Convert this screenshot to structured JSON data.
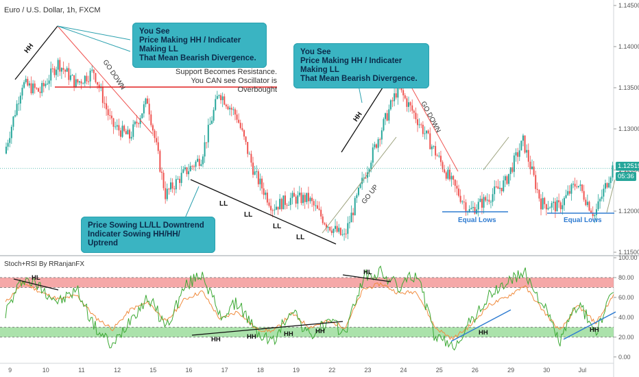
{
  "chart_title": "Euro / U.S. Dollar, 1h, FXCM",
  "indicator_title": "Stoch+RSI By RRanjanFX",
  "current_price": "1.12519",
  "countdown": "05:36",
  "callouts": {
    "top_left": "You See\nPrice Making HH / Indicater Making LL\nThat Mean Bearish Divergence.",
    "top_right": "You See\nPrice Making HH / Indicater Making LL\nThat Mean Bearish Divergence.",
    "bottom": "Price Sowing LL/LL Downtrend\nIndicater Sowing HH/HH/ Uptrend"
  },
  "support_note": "Support Becomes Resistance.\nYou CAN see Oscillator is Overbought",
  "colors": {
    "bull": "#26a69a",
    "bear": "#ef5350",
    "callout": "#3ab4c2",
    "overbought_zone": "#f28b8b",
    "oversold_zone": "#8fd88f",
    "stoch_line": "#f08a3c",
    "rsi_line": "#3aa832",
    "equal_lows": "#2e7bd1",
    "resistance": "#e01e1e"
  },
  "chart_data": [
    {
      "type": "line",
      "title": "Euro / U.S. Dollar, 1h, FXCM",
      "x_ticks": [
        "9",
        "10",
        "11",
        "12",
        "15",
        "16",
        "17",
        "18",
        "19",
        "22",
        "23",
        "24",
        "25",
        "26",
        "29",
        "30",
        "Jul"
      ],
      "y_ticks": [
        "1.11500",
        "1.12000",
        "1.12500",
        "1.13000",
        "1.13500",
        "1.14000",
        "1.14500"
      ],
      "ylim": [
        1.115,
        1.145
      ],
      "series": [
        {
          "x": [
            0,
            0.5,
            1,
            1.5,
            2,
            2.5,
            3,
            3.5,
            4,
            4.5,
            5,
            5.5,
            6,
            6.5,
            7,
            7.5,
            8,
            8.5,
            9,
            9.5,
            10,
            10.5,
            11,
            11.5,
            12,
            12.5,
            13,
            13.5,
            14,
            14.5,
            15,
            15.5,
            16,
            16.5,
            17
          ],
          "values": [
            1.127,
            1.1355,
            1.1345,
            1.138,
            1.1355,
            1.137,
            1.1305,
            1.129,
            1.1335,
            1.122,
            1.1245,
            1.1265,
            1.1345,
            1.1315,
            1.1245,
            1.1205,
            1.1215,
            1.1215,
            1.1185,
            1.1168,
            1.1235,
            1.1295,
            1.135,
            1.1315,
            1.1275,
            1.1235,
            1.12,
            1.1215,
            1.1235,
            1.1285,
            1.121,
            1.1205,
            1.1235,
            1.1195,
            1.1253
          ]
        }
      ],
      "annotations": [
        {
          "text": "HH",
          "near_x": 0.6
        },
        {
          "text": "GO DOWN",
          "near_x": 1.8
        },
        {
          "text": "LL",
          "near_x": 6.3
        },
        {
          "text": "LL",
          "near_x": 7.1
        },
        {
          "text": "LL",
          "near_x": 7.9
        },
        {
          "text": "LL",
          "near_x": 8.6
        },
        {
          "text": "GO UP",
          "near_x": 10.0
        },
        {
          "text": "HH",
          "near_x": 10.3
        },
        {
          "text": "GO DOWN",
          "near_x": 12.3
        },
        {
          "text": "Equal Lows",
          "near_x": 13.3
        },
        {
          "text": "Equal Lows",
          "near_x": 16.4
        }
      ],
      "resistance_level": 1.1345,
      "equal_lows_levels": [
        1.1193,
        1.1188
      ]
    },
    {
      "type": "line",
      "title": "Stoch+RSI By RRanjanFX",
      "y_ticks": [
        "0.00",
        "20.00",
        "40.00",
        "60.00",
        "80.00",
        "100.00"
      ],
      "ylim": [
        -5,
        100
      ],
      "zones": [
        {
          "name": "overbought",
          "from": 70,
          "to": 80
        },
        {
          "name": "oversold",
          "from": 20,
          "to": 30
        }
      ],
      "series": [
        {
          "x": [
            0,
            0.5,
            1,
            1.5,
            2,
            2.5,
            3,
            3.5,
            4,
            4.5,
            5,
            5.5,
            6,
            6.5,
            7,
            7.5,
            8,
            8.5,
            9,
            9.5,
            10,
            10.5,
            11,
            11.5,
            12,
            12.5,
            13,
            13.5,
            14,
            14.5,
            15,
            15.5,
            16,
            16.5,
            17
          ],
          "values": [
            45,
            80,
            70,
            55,
            68,
            30,
            10,
            40,
            60,
            30,
            70,
            85,
            40,
            55,
            25,
            15,
            50,
            20,
            35,
            25,
            80,
            85,
            70,
            85,
            20,
            10,
            35,
            60,
            75,
            85,
            55,
            15,
            55,
            25,
            65
          ]
        },
        {
          "x": [
            0,
            0.5,
            1,
            1.5,
            2,
            2.5,
            3,
            3.5,
            4,
            4.5,
            5,
            5.5,
            6,
            6.5,
            7,
            7.5,
            8,
            8.5,
            9,
            9.5,
            10,
            10.5,
            11,
            11.5,
            12,
            12.5,
            13,
            13.5,
            14,
            14.5,
            15,
            15.5,
            16,
            16.5,
            17
          ],
          "values": [
            55,
            75,
            65,
            58,
            62,
            40,
            28,
            48,
            55,
            35,
            58,
            66,
            38,
            46,
            28,
            26,
            44,
            30,
            36,
            30,
            68,
            74,
            64,
            66,
            30,
            18,
            32,
            52,
            60,
            72,
            48,
            26,
            52,
            34,
            62
          ]
        }
      ],
      "annotations": [
        {
          "text": "HL",
          "near_x": 0.9
        },
        {
          "text": "HH",
          "near_x": 6.1
        },
        {
          "text": "HH",
          "near_x": 7.0
        },
        {
          "text": "HH",
          "near_x": 8.0
        },
        {
          "text": "HH",
          "near_x": 8.9
        },
        {
          "text": "HL",
          "near_x": 10.4
        },
        {
          "text": "HH",
          "near_x": 13.3
        },
        {
          "text": "HH",
          "near_x": 16.4
        }
      ]
    }
  ]
}
